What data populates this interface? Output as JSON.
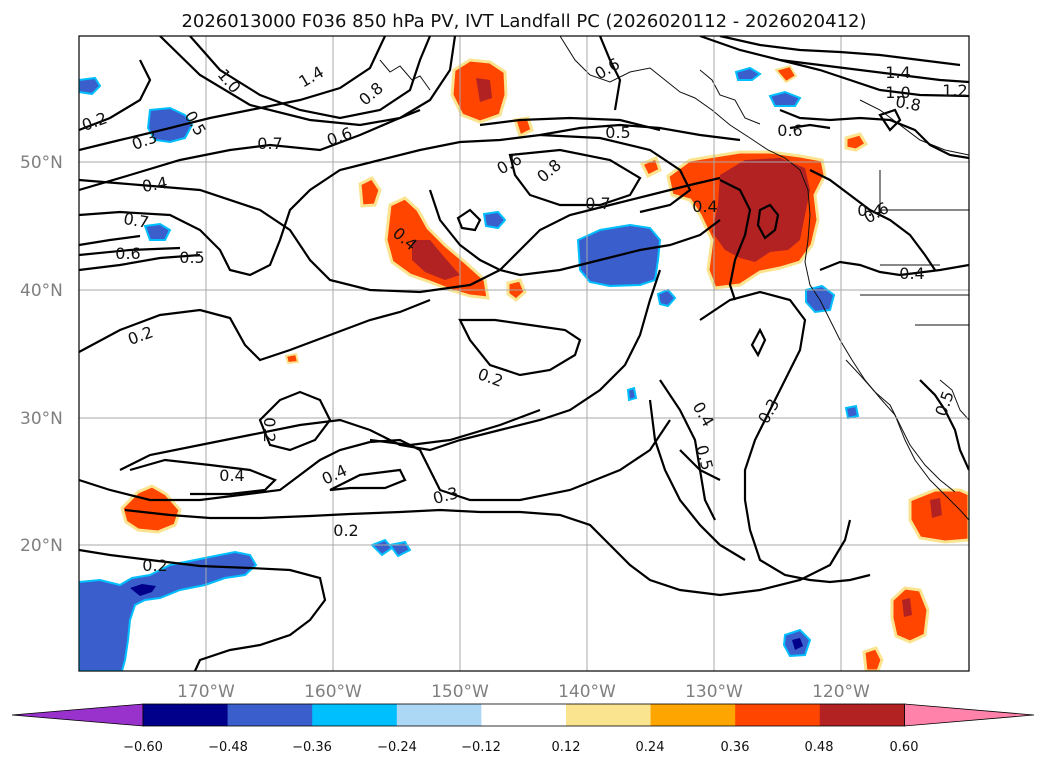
{
  "title": "2026013000 F036 850 hPa PV, IVT Landfall PC (2026020112 - 2026020412)",
  "lat_labels": [
    "50°N",
    "40°N",
    "30°N",
    "20°N"
  ],
  "lon_labels": [
    "170°W",
    "160°W",
    "150°W",
    "140°W",
    "130°W",
    "120°W"
  ],
  "colorbar": {
    "ticks": [
      "−0.60",
      "−0.48",
      "−0.36",
      "−0.24",
      "−0.12",
      "0.12",
      "0.24",
      "0.36",
      "0.48",
      "0.60"
    ],
    "colors": [
      "#9932cc",
      "#00008b",
      "#3a5fcd",
      "#00bfff",
      "#add8f5",
      "#ffffff",
      "#fbe48f",
      "#ffa500",
      "#ff4500",
      "#b22222",
      "#ff82ab"
    ]
  },
  "contour_labels": [
    "0.2",
    "0.3",
    "1.0",
    "1.4",
    "0.8",
    "0.7",
    "0.6",
    "0.4",
    "0.5",
    "0.6",
    "0.8",
    "0.5",
    "0.7",
    "1.4",
    "1.0",
    "1.2",
    "0.8",
    "0.6",
    "0.6",
    "0.4",
    "0.7",
    "0.6",
    "0.5",
    "0.4",
    "0.2",
    "0.2",
    "0.2",
    "0.4",
    "0.4",
    "0.3",
    "0.2",
    "0.2",
    "0.4",
    "0.5",
    "0.3",
    "0.5",
    "0.4",
    "0.4",
    "0.6"
  ]
}
